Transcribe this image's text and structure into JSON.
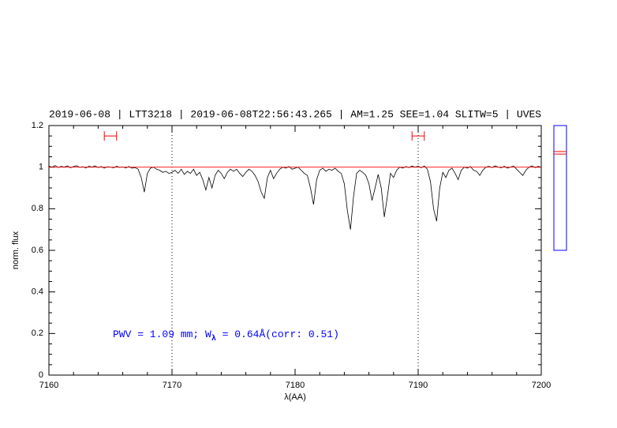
{
  "chart_data": {
    "type": "line",
    "title": "2019-06-08 | LTT3218 | 2019-06-08T22:56:43.265 | AM=1.25 SEE=1.04 SLITW=5 | UVES",
    "title_color": "#0000ff",
    "xlabel": "λ(AA)",
    "ylabel": "norm. flux",
    "annotation": {
      "parts": [
        "PWV = 1.09 mm; W",
        "λ",
        " = 0.64Å(corr: 0.51)"
      ],
      "color": "#0000ff"
    },
    "xlim": [
      7160,
      7200
    ],
    "ylim": [
      0,
      1.2
    ],
    "xticks": [
      7160,
      7170,
      7180,
      7190,
      7200
    ],
    "yticks": [
      0,
      0.2,
      0.4,
      0.6,
      0.8,
      1,
      1.2
    ],
    "vlines": [
      7170,
      7190
    ],
    "series": [
      {
        "name": "spectrum",
        "color": "#000000",
        "x": [
          7160,
          7160.25,
          7160.5,
          7160.75,
          7161,
          7161.25,
          7161.5,
          7161.75,
          7162,
          7162.25,
          7162.5,
          7162.75,
          7163,
          7163.25,
          7163.5,
          7163.75,
          7164,
          7164.25,
          7164.5,
          7164.75,
          7165,
          7165.25,
          7165.5,
          7165.75,
          7166,
          7166.25,
          7166.5,
          7166.75,
          7167,
          7167.25,
          7167.5,
          7167.75,
          7168,
          7168.25,
          7168.5,
          7168.75,
          7169,
          7169.25,
          7169.5,
          7169.75,
          7170,
          7170.25,
          7170.5,
          7170.75,
          7171,
          7171.25,
          7171.5,
          7171.75,
          7172,
          7172.25,
          7172.5,
          7172.75,
          7173,
          7173.25,
          7173.5,
          7173.75,
          7174,
          7174.25,
          7174.5,
          7174.75,
          7175,
          7175.25,
          7175.5,
          7175.75,
          7176,
          7176.25,
          7176.5,
          7176.75,
          7177,
          7177.25,
          7177.5,
          7177.75,
          7178,
          7178.25,
          7178.5,
          7178.75,
          7179,
          7179.25,
          7179.5,
          7179.75,
          7180,
          7180.25,
          7180.5,
          7180.75,
          7181,
          7181.25,
          7181.5,
          7181.75,
          7182,
          7182.25,
          7182.5,
          7182.75,
          7183,
          7183.25,
          7183.5,
          7183.75,
          7184,
          7184.25,
          7184.5,
          7184.75,
          7185,
          7185.25,
          7185.5,
          7185.75,
          7186,
          7186.25,
          7186.5,
          7186.75,
          7187,
          7187.25,
          7187.5,
          7187.75,
          7188,
          7188.25,
          7188.5,
          7188.75,
          7189,
          7189.25,
          7189.5,
          7189.75,
          7190,
          7190.25,
          7190.5,
          7190.75,
          7191,
          7191.25,
          7191.5,
          7191.75,
          7192,
          7192.25,
          7192.5,
          7192.75,
          7193,
          7193.25,
          7193.5,
          7193.75,
          7194,
          7194.25,
          7194.5,
          7194.75,
          7195,
          7195.25,
          7195.5,
          7195.75,
          7196,
          7196.25,
          7196.5,
          7196.75,
          7197,
          7197.25,
          7197.5,
          7197.75,
          7198,
          7198.25,
          7198.5,
          7198.75,
          7199,
          7199.25,
          7199.5,
          7199.75,
          7200
        ],
        "values": [
          1.005,
          1.0,
          1.008,
          0.998,
          1.004,
          1.0,
          1.006,
          0.997,
          1.003,
          1.007,
          0.999,
          1.002,
          0.996,
          1.004,
          1.0,
          1.006,
          0.998,
          1.003,
          0.995,
          1.002,
          1.0,
          0.997,
          1.004,
          0.999,
          1.001,
          0.996,
          1.003,
          0.995,
          0.998,
          0.99,
          0.95,
          0.88,
          0.97,
          0.995,
          1.0,
          0.99,
          0.985,
          0.975,
          0.98,
          0.97,
          0.975,
          0.985,
          0.97,
          0.99,
          0.965,
          0.98,
          0.97,
          0.99,
          0.96,
          0.975,
          0.94,
          0.89,
          0.95,
          0.9,
          0.96,
          0.985,
          0.97,
          0.945,
          0.975,
          0.99,
          0.98,
          0.99,
          0.97,
          0.955,
          0.975,
          0.99,
          0.98,
          0.96,
          0.93,
          0.88,
          0.85,
          0.95,
          0.985,
          0.945,
          0.97,
          0.99,
          1.0,
          0.995,
          1.003,
          0.99,
          0.995,
          1.0,
          0.985,
          0.97,
          0.96,
          0.9,
          0.82,
          0.94,
          0.985,
          0.995,
          0.98,
          0.99,
          0.985,
          0.995,
          0.98,
          0.97,
          0.92,
          0.79,
          0.7,
          0.86,
          0.97,
          0.985,
          0.975,
          0.96,
          0.92,
          0.84,
          0.9,
          0.965,
          0.9,
          0.76,
          0.86,
          0.97,
          0.95,
          0.985,
          1.0,
          0.995,
          1.003,
          0.998,
          1.005,
          1.0,
          1.004,
          0.997,
          1.006,
          0.99,
          0.93,
          0.8,
          0.74,
          0.9,
          0.975,
          0.95,
          0.985,
          0.995,
          0.97,
          0.94,
          0.985,
          1.0,
          0.995,
          1.003,
          0.985,
          0.98,
          0.96,
          0.985,
          1.0,
          1.004,
          0.998,
          1.006,
          1.0,
          0.997,
          1.004,
          0.995,
          1.0,
          1.005,
          0.99,
          0.975,
          0.96,
          0.985,
          1.0,
          1.006,
          0.998,
          1.004,
          1.0
        ]
      },
      {
        "name": "continuum",
        "color": "#ff0000",
        "x": [
          7160,
          7200
        ],
        "values": [
          1,
          1
        ]
      }
    ],
    "ranges": [
      {
        "x": [
          7164.5,
          7165.5
        ],
        "y": 1.15,
        "color": "#ff0000"
      },
      {
        "x": [
          7189.5,
          7190.5
        ],
        "y": 1.15,
        "color": "#ff0000"
      }
    ],
    "side_panel": {
      "ylim": [
        0.6,
        1.2
      ],
      "values": [
        1.075,
        1.063
      ],
      "color": "#ff0000",
      "frame_color": "#0000ff"
    }
  }
}
